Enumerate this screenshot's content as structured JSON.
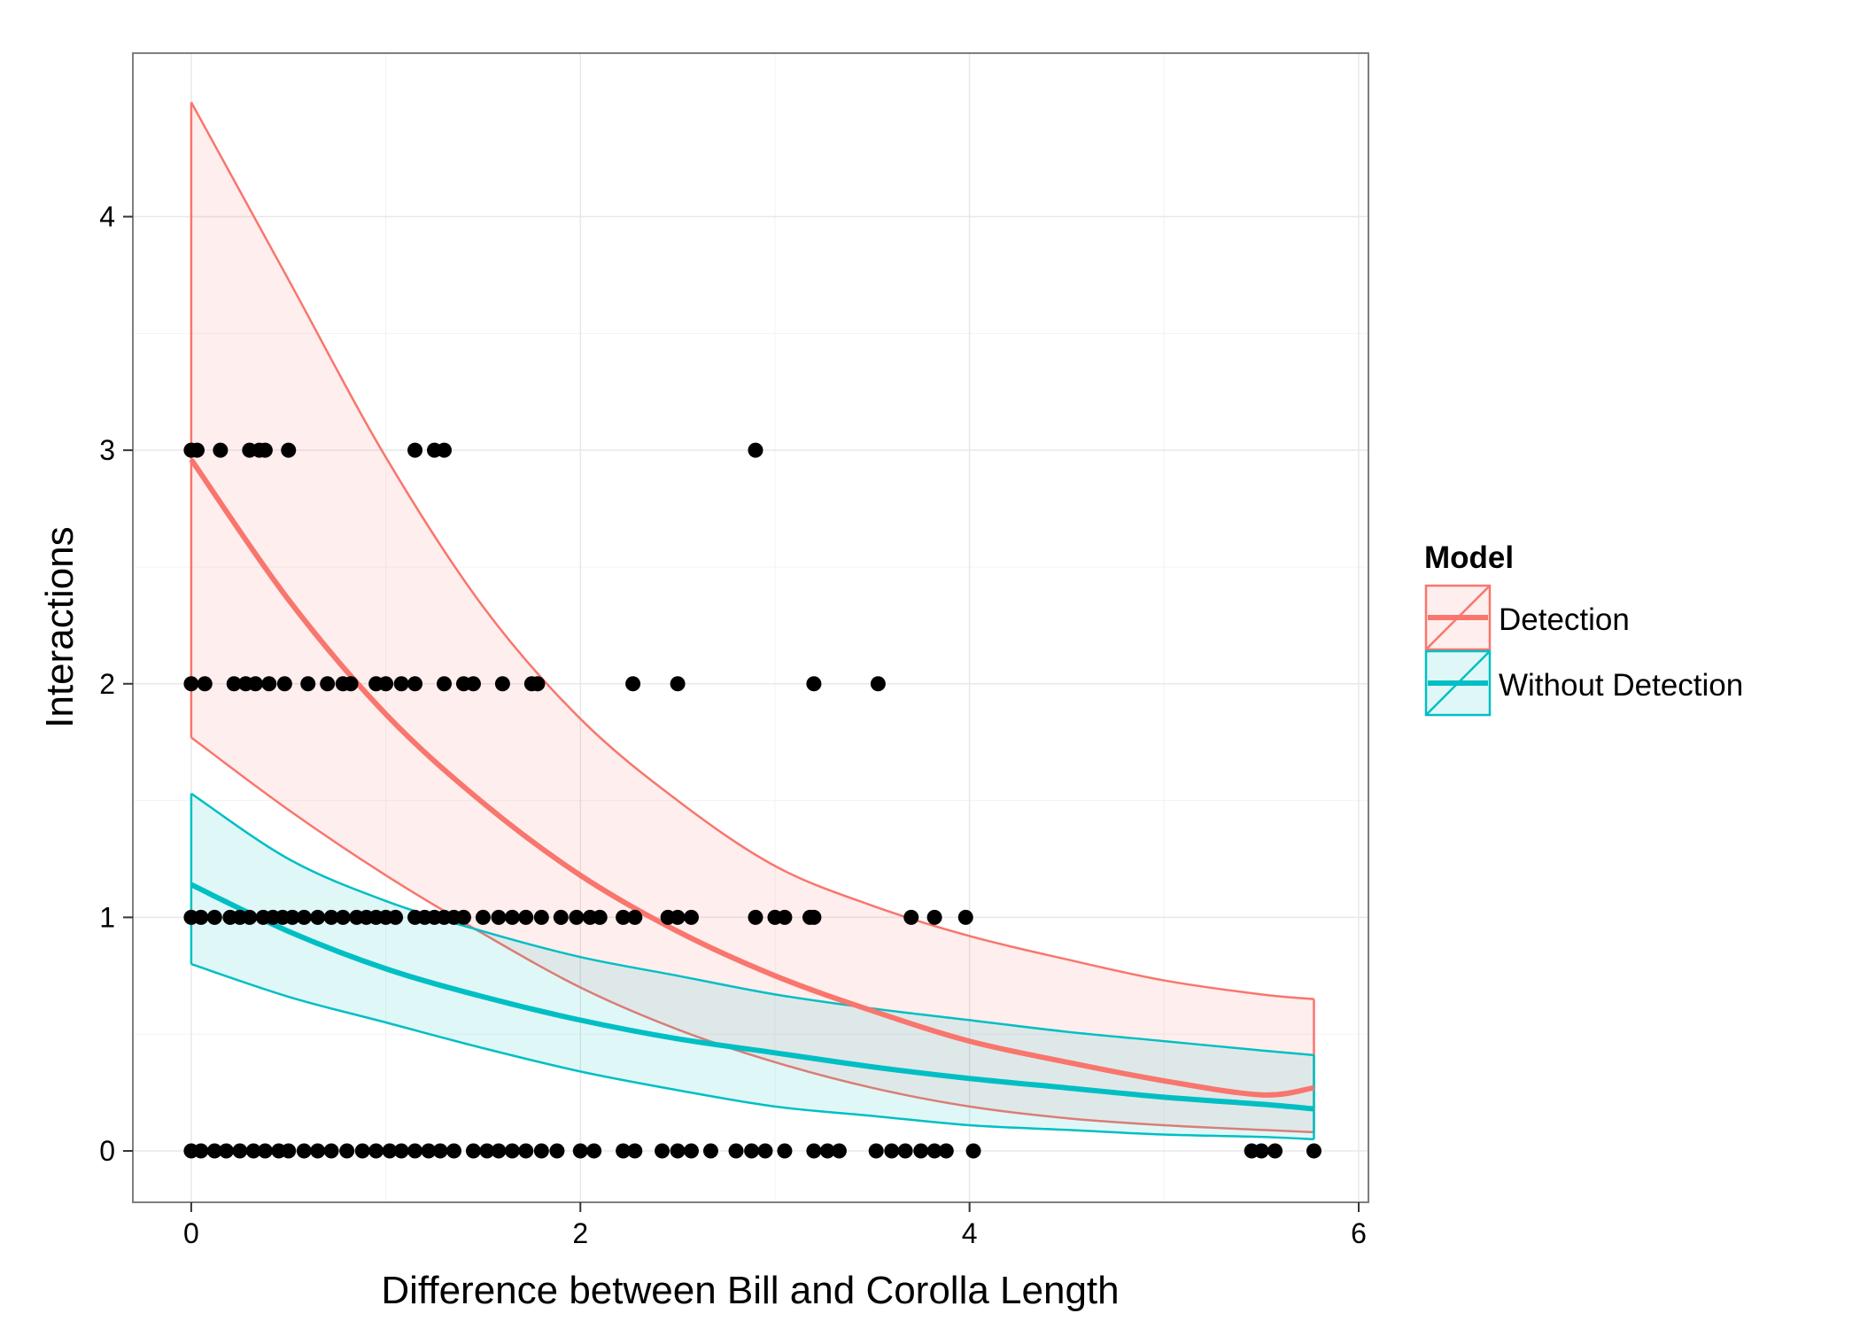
{
  "chart_data": {
    "type": "line",
    "title": "",
    "xlabel": "Difference between Bill and Corolla Length",
    "ylabel": "Interactions",
    "xlim": [
      -0.3,
      6.05
    ],
    "ylim": [
      -0.22,
      4.7
    ],
    "x_ticks": [
      0,
      2,
      4,
      6
    ],
    "y_ticks": [
      0,
      1,
      2,
      3,
      4
    ],
    "x_tick_labels": [
      "0",
      "2",
      "4",
      "6"
    ],
    "y_tick_labels": [
      "0",
      "1",
      "2",
      "3",
      "4"
    ],
    "grid": true,
    "legend": {
      "title": "Model",
      "position": "right",
      "entries": [
        "Detection",
        "Without Detection"
      ]
    },
    "series": [
      {
        "name": "Detection",
        "color": "#F8766D",
        "x": [
          0,
          0.5,
          1,
          1.5,
          2,
          2.5,
          3,
          3.5,
          4,
          4.5,
          5,
          5.5,
          5.77
        ],
        "fit": [
          2.96,
          2.36,
          1.87,
          1.49,
          1.18,
          0.94,
          0.75,
          0.6,
          0.47,
          0.38,
          0.3,
          0.24,
          0.27
        ],
        "lower": [
          1.77,
          1.46,
          1.18,
          0.93,
          0.7,
          0.52,
          0.38,
          0.27,
          0.19,
          0.14,
          0.11,
          0.09,
          0.08
        ],
        "upper": [
          4.49,
          3.73,
          2.97,
          2.33,
          1.85,
          1.5,
          1.22,
          1.05,
          0.92,
          0.82,
          0.73,
          0.67,
          0.65
        ]
      },
      {
        "name": "Without Detection",
        "color": "#00BFC4",
        "x": [
          0,
          0.5,
          1,
          1.5,
          2,
          2.5,
          3,
          3.5,
          4,
          4.5,
          5,
          5.5,
          5.77
        ],
        "fit": [
          1.14,
          0.94,
          0.78,
          0.66,
          0.56,
          0.48,
          0.42,
          0.36,
          0.31,
          0.27,
          0.23,
          0.2,
          0.18
        ],
        "lower": [
          0.8,
          0.66,
          0.55,
          0.44,
          0.34,
          0.26,
          0.19,
          0.15,
          0.11,
          0.09,
          0.07,
          0.06,
          0.05
        ],
        "upper": [
          1.53,
          1.25,
          1.07,
          0.94,
          0.83,
          0.75,
          0.67,
          0.61,
          0.56,
          0.51,
          0.47,
          0.43,
          0.41
        ]
      }
    ],
    "points": [
      {
        "x": 0.0,
        "y": 3
      },
      {
        "x": 0.03,
        "y": 3
      },
      {
        "x": 0.15,
        "y": 3
      },
      {
        "x": 0.3,
        "y": 3
      },
      {
        "x": 0.35,
        "y": 3
      },
      {
        "x": 0.38,
        "y": 3
      },
      {
        "x": 0.5,
        "y": 3
      },
      {
        "x": 1.15,
        "y": 3
      },
      {
        "x": 1.25,
        "y": 3
      },
      {
        "x": 1.3,
        "y": 3
      },
      {
        "x": 2.9,
        "y": 3
      },
      {
        "x": 0.0,
        "y": 2
      },
      {
        "x": 0.07,
        "y": 2
      },
      {
        "x": 0.22,
        "y": 2
      },
      {
        "x": 0.28,
        "y": 2
      },
      {
        "x": 0.33,
        "y": 2
      },
      {
        "x": 0.4,
        "y": 2
      },
      {
        "x": 0.48,
        "y": 2
      },
      {
        "x": 0.6,
        "y": 2
      },
      {
        "x": 0.7,
        "y": 2
      },
      {
        "x": 0.78,
        "y": 2
      },
      {
        "x": 0.82,
        "y": 2
      },
      {
        "x": 0.95,
        "y": 2
      },
      {
        "x": 1.0,
        "y": 2
      },
      {
        "x": 1.08,
        "y": 2
      },
      {
        "x": 1.15,
        "y": 2
      },
      {
        "x": 1.3,
        "y": 2
      },
      {
        "x": 1.4,
        "y": 2
      },
      {
        "x": 1.45,
        "y": 2
      },
      {
        "x": 1.6,
        "y": 2
      },
      {
        "x": 1.75,
        "y": 2
      },
      {
        "x": 1.78,
        "y": 2
      },
      {
        "x": 2.27,
        "y": 2
      },
      {
        "x": 2.5,
        "y": 2
      },
      {
        "x": 3.2,
        "y": 2
      },
      {
        "x": 3.53,
        "y": 2
      },
      {
        "x": 0.0,
        "y": 1
      },
      {
        "x": 0.05,
        "y": 1
      },
      {
        "x": 0.12,
        "y": 1
      },
      {
        "x": 0.2,
        "y": 1
      },
      {
        "x": 0.25,
        "y": 1
      },
      {
        "x": 0.3,
        "y": 1
      },
      {
        "x": 0.37,
        "y": 1
      },
      {
        "x": 0.42,
        "y": 1
      },
      {
        "x": 0.47,
        "y": 1
      },
      {
        "x": 0.52,
        "y": 1
      },
      {
        "x": 0.58,
        "y": 1
      },
      {
        "x": 0.65,
        "y": 1
      },
      {
        "x": 0.72,
        "y": 1
      },
      {
        "x": 0.78,
        "y": 1
      },
      {
        "x": 0.85,
        "y": 1
      },
      {
        "x": 0.9,
        "y": 1
      },
      {
        "x": 0.95,
        "y": 1
      },
      {
        "x": 1.0,
        "y": 1
      },
      {
        "x": 1.05,
        "y": 1
      },
      {
        "x": 1.15,
        "y": 1
      },
      {
        "x": 1.2,
        "y": 1
      },
      {
        "x": 1.25,
        "y": 1
      },
      {
        "x": 1.3,
        "y": 1
      },
      {
        "x": 1.35,
        "y": 1
      },
      {
        "x": 1.4,
        "y": 1
      },
      {
        "x": 1.5,
        "y": 1
      },
      {
        "x": 1.58,
        "y": 1
      },
      {
        "x": 1.65,
        "y": 1
      },
      {
        "x": 1.72,
        "y": 1
      },
      {
        "x": 1.8,
        "y": 1
      },
      {
        "x": 1.9,
        "y": 1
      },
      {
        "x": 1.98,
        "y": 1
      },
      {
        "x": 2.05,
        "y": 1
      },
      {
        "x": 2.1,
        "y": 1
      },
      {
        "x": 2.22,
        "y": 1
      },
      {
        "x": 2.28,
        "y": 1
      },
      {
        "x": 2.45,
        "y": 1
      },
      {
        "x": 2.5,
        "y": 1
      },
      {
        "x": 2.57,
        "y": 1
      },
      {
        "x": 2.9,
        "y": 1
      },
      {
        "x": 3.0,
        "y": 1
      },
      {
        "x": 3.05,
        "y": 1
      },
      {
        "x": 3.18,
        "y": 1
      },
      {
        "x": 3.2,
        "y": 1
      },
      {
        "x": 3.7,
        "y": 1
      },
      {
        "x": 3.82,
        "y": 1
      },
      {
        "x": 3.98,
        "y": 1
      },
      {
        "x": 0.0,
        "y": 0
      },
      {
        "x": 0.05,
        "y": 0
      },
      {
        "x": 0.12,
        "y": 0
      },
      {
        "x": 0.18,
        "y": 0
      },
      {
        "x": 0.25,
        "y": 0
      },
      {
        "x": 0.32,
        "y": 0
      },
      {
        "x": 0.38,
        "y": 0
      },
      {
        "x": 0.45,
        "y": 0
      },
      {
        "x": 0.5,
        "y": 0
      },
      {
        "x": 0.58,
        "y": 0
      },
      {
        "x": 0.65,
        "y": 0
      },
      {
        "x": 0.72,
        "y": 0
      },
      {
        "x": 0.8,
        "y": 0
      },
      {
        "x": 0.88,
        "y": 0
      },
      {
        "x": 0.95,
        "y": 0
      },
      {
        "x": 1.02,
        "y": 0
      },
      {
        "x": 1.08,
        "y": 0
      },
      {
        "x": 1.15,
        "y": 0
      },
      {
        "x": 1.22,
        "y": 0
      },
      {
        "x": 1.28,
        "y": 0
      },
      {
        "x": 1.35,
        "y": 0
      },
      {
        "x": 1.45,
        "y": 0
      },
      {
        "x": 1.52,
        "y": 0
      },
      {
        "x": 1.58,
        "y": 0
      },
      {
        "x": 1.65,
        "y": 0
      },
      {
        "x": 1.72,
        "y": 0
      },
      {
        "x": 1.8,
        "y": 0
      },
      {
        "x": 1.88,
        "y": 0
      },
      {
        "x": 2.0,
        "y": 0
      },
      {
        "x": 2.07,
        "y": 0
      },
      {
        "x": 2.22,
        "y": 0
      },
      {
        "x": 2.28,
        "y": 0
      },
      {
        "x": 2.42,
        "y": 0
      },
      {
        "x": 2.5,
        "y": 0
      },
      {
        "x": 2.57,
        "y": 0
      },
      {
        "x": 2.67,
        "y": 0
      },
      {
        "x": 2.8,
        "y": 0
      },
      {
        "x": 2.88,
        "y": 0
      },
      {
        "x": 2.95,
        "y": 0
      },
      {
        "x": 3.05,
        "y": 0
      },
      {
        "x": 3.2,
        "y": 0
      },
      {
        "x": 3.27,
        "y": 0
      },
      {
        "x": 3.33,
        "y": 0
      },
      {
        "x": 3.52,
        "y": 0
      },
      {
        "x": 3.6,
        "y": 0
      },
      {
        "x": 3.67,
        "y": 0
      },
      {
        "x": 3.75,
        "y": 0
      },
      {
        "x": 3.82,
        "y": 0
      },
      {
        "x": 3.88,
        "y": 0
      },
      {
        "x": 4.02,
        "y": 0
      },
      {
        "x": 5.45,
        "y": 0
      },
      {
        "x": 5.5,
        "y": 0
      },
      {
        "x": 5.57,
        "y": 0
      },
      {
        "x": 5.77,
        "y": 0
      }
    ]
  }
}
